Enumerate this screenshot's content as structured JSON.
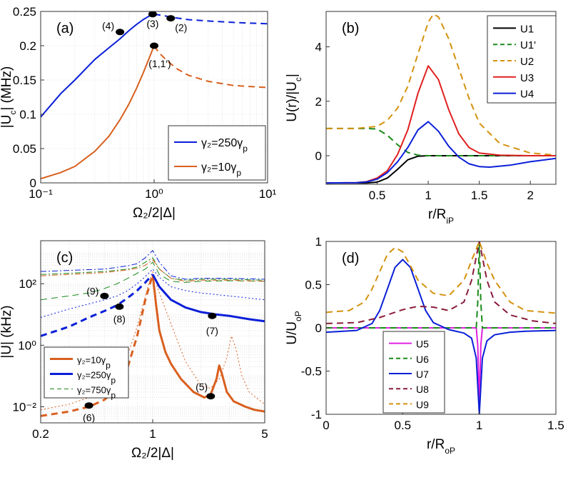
{
  "chart_data": [
    {
      "id": "a",
      "type": "line",
      "panel_label": "(a)",
      "xscale": "log",
      "xlim": [
        0.1,
        10
      ],
      "ylim": [
        0,
        0.25
      ],
      "xlabel": "Ω₂/2|Δ|",
      "ylabel": "|U_c| (MHz)",
      "xticks": [
        0.1,
        1,
        10
      ],
      "xtick_labels": [
        "10⁻¹",
        "10⁰",
        "10¹"
      ],
      "yticks": [
        0,
        0.05,
        0.1,
        0.15,
        0.2,
        0.25
      ],
      "ytick_labels": [
        "0",
        "0.05",
        "0.1",
        "0.15",
        "0.2",
        "0.25"
      ],
      "grid": true,
      "legend_position": "bottom-right",
      "series": [
        {
          "name": "γ₂=250γ_p",
          "color": "#0a1fd8",
          "style": "solid",
          "x": [
            0.1,
            0.15,
            0.2,
            0.3,
            0.4,
            0.5,
            0.6,
            0.7,
            0.8,
            0.9,
            0.95,
            1.0
          ],
          "y": [
            0.096,
            0.13,
            0.15,
            0.18,
            0.197,
            0.21,
            0.222,
            0.231,
            0.238,
            0.243,
            0.245,
            0.246
          ]
        },
        {
          "name": "γ₂=250γ_p (dashed)",
          "color": "#0a1fd8",
          "style": "dashed",
          "x": [
            1.0,
            1.2,
            1.5,
            2,
            3,
            5,
            10
          ],
          "y": [
            0.246,
            0.244,
            0.241,
            0.238,
            0.236,
            0.234,
            0.232
          ]
        },
        {
          "name": "γ₂=10γ_p",
          "color": "#d95f1e",
          "style": "solid",
          "x": [
            0.1,
            0.15,
            0.2,
            0.3,
            0.4,
            0.5,
            0.6,
            0.7,
            0.8,
            0.9,
            1.0
          ],
          "y": [
            0.006,
            0.015,
            0.024,
            0.046,
            0.068,
            0.092,
            0.115,
            0.138,
            0.16,
            0.181,
            0.2
          ]
        },
        {
          "name": "γ₂=10γ_p (dashed)",
          "color": "#d95f1e",
          "style": "dashed",
          "x": [
            1.0,
            1.1,
            1.3,
            1.6,
            2,
            3,
            5,
            10
          ],
          "y": [
            0.2,
            0.19,
            0.178,
            0.166,
            0.157,
            0.148,
            0.142,
            0.139
          ]
        }
      ],
      "markers": [
        {
          "label": "(4)",
          "x": 0.5,
          "y": 0.22
        },
        {
          "label": "(3)",
          "x": 0.97,
          "y": 0.246
        },
        {
          "label": "(2)",
          "x": 1.4,
          "y": 0.24
        },
        {
          "label": "(1,1′)",
          "x": 1.0,
          "y": 0.2
        }
      ]
    },
    {
      "id": "b",
      "type": "line",
      "panel_label": "(b)",
      "xlim": [
        0,
        2.25
      ],
      "ylim": [
        -1.05,
        5.3
      ],
      "xlabel": "r/R_iP",
      "ylabel": "U(r)/|U_c|",
      "xticks": [
        0.5,
        1,
        1.5,
        2
      ],
      "xtick_labels": [
        "0.5",
        "1",
        "1.5",
        "2"
      ],
      "yticks": [
        0,
        2,
        4
      ],
      "ytick_labels": [
        "0",
        "2",
        "4"
      ],
      "grid": false,
      "legend_position": "top-right",
      "series": [
        {
          "name": "U1",
          "color": "#000000",
          "style": "solid",
          "x": [
            0,
            0.4,
            0.5,
            0.6,
            0.7,
            0.8,
            0.9,
            1,
            1.5,
            2.25
          ],
          "y": [
            -1,
            -1,
            -0.97,
            -0.82,
            -0.5,
            -0.15,
            -0.02,
            0,
            0,
            0
          ]
        },
        {
          "name": "U1'",
          "color": "#1a8a1a",
          "style": "dashed",
          "x": [
            0,
            0.4,
            0.5,
            0.6,
            0.7,
            0.8,
            0.9,
            1,
            1.5,
            2.25
          ],
          "y": [
            1,
            1,
            0.98,
            0.75,
            0.4,
            0.12,
            0.02,
            0,
            0,
            0
          ]
        },
        {
          "name": "U2",
          "color": "#d4920f",
          "style": "dashed",
          "x": [
            0,
            0.3,
            0.5,
            0.6,
            0.7,
            0.8,
            0.9,
            1,
            1.05,
            1.1,
            1.2,
            1.3,
            1.4,
            1.5,
            1.7,
            2,
            2.25
          ],
          "y": [
            1,
            1,
            1.08,
            1.3,
            1.75,
            2.55,
            3.75,
            4.9,
            5.2,
            5.1,
            4.3,
            3.2,
            2.1,
            1.2,
            0.45,
            0.1,
            0.02
          ]
        },
        {
          "name": "U3",
          "color": "#e02020",
          "style": "solid",
          "x": [
            0,
            0.3,
            0.4,
            0.5,
            0.6,
            0.7,
            0.8,
            0.9,
            1,
            1.1,
            1.2,
            1.3,
            1.4,
            1.5,
            1.7,
            2,
            2.25
          ],
          "y": [
            -1,
            -0.99,
            -0.95,
            -0.82,
            -0.55,
            0.05,
            0.95,
            2.3,
            3.3,
            2.8,
            1.7,
            0.8,
            0.3,
            0.1,
            0.02,
            0,
            0
          ]
        },
        {
          "name": "U4",
          "color": "#0a1fd8",
          "style": "solid",
          "x": [
            0,
            0.3,
            0.4,
            0.5,
            0.6,
            0.7,
            0.8,
            0.9,
            1,
            1.1,
            1.2,
            1.3,
            1.4,
            1.5,
            1.6,
            1.8,
            2,
            2.25
          ],
          "y": [
            -1,
            -0.99,
            -0.96,
            -0.86,
            -0.62,
            -0.22,
            0.3,
            0.95,
            1.25,
            0.9,
            0.35,
            -0.05,
            -0.3,
            -0.4,
            -0.42,
            -0.35,
            -0.22,
            -0.1
          ]
        }
      ]
    },
    {
      "id": "c",
      "type": "line",
      "panel_label": "(c)",
      "xscale": "log",
      "yscale": "log",
      "xlim": [
        0.2,
        5
      ],
      "ylim": [
        0.003,
        2500
      ],
      "xlabel": "Ω₂/2|Δ|",
      "ylabel": "|U| (kHz)",
      "xticks": [
        0.2,
        1,
        5
      ],
      "xtick_labels": [
        "0.2",
        "1",
        "5"
      ],
      "yticks": [
        0.01,
        1,
        100
      ],
      "ytick_labels": [
        "10⁻²",
        "10⁰",
        "10²"
      ],
      "grid": true,
      "legend_position": "bottom-left",
      "series": [
        {
          "name": "γ₂=10γ_p",
          "color": "#d95f1e",
          "style": "dashed",
          "width": 3,
          "x": [
            0.2,
            0.3,
            0.4,
            0.5,
            0.6,
            0.7,
            0.8,
            0.9,
            1.0
          ],
          "y": [
            0.005,
            0.007,
            0.01,
            0.017,
            0.04,
            0.2,
            2,
            30,
            200
          ]
        },
        {
          "name": "γ₂=10γ_p (solid)",
          "color": "#d95f1e",
          "style": "solid",
          "width": 3,
          "x": [
            1.0,
            1.05,
            1.1,
            1.2,
            1.3,
            1.5,
            1.8,
            2.1,
            2.3,
            2.5,
            2.6,
            2.7,
            2.9,
            3.2,
            3.8,
            4.3,
            5
          ],
          "y": [
            200,
            20,
            3,
            0.6,
            0.25,
            0.08,
            0.03,
            0.02,
            0.025,
            0.08,
            0.22,
            0.12,
            0.03,
            0.015,
            0.01,
            0.008,
            0.007
          ]
        },
        {
          "name": "γ₂=10γ_p (thin)",
          "color": "#d95f1e",
          "style": "dotted",
          "width": 1,
          "x": [
            0.2,
            0.3,
            0.4,
            0.5,
            0.6,
            0.7,
            0.8,
            0.9,
            1.0,
            1.1,
            1.3,
            1.6,
            2,
            2.3,
            2.6,
            2.9,
            3.1,
            3.3,
            3.6,
            4,
            5
          ],
          "y": [
            0.008,
            0.012,
            0.02,
            0.04,
            0.1,
            0.5,
            4,
            40,
            250,
            50,
            5,
            0.3,
            0.05,
            0.04,
            0.08,
            0.4,
            2,
            0.8,
            0.1,
            0.03,
            0.012
          ]
        },
        {
          "name": "γ₂=250γ_p",
          "color": "#0a1fd8",
          "style": "dashed",
          "width": 3,
          "x": [
            0.2,
            0.3,
            0.4,
            0.5,
            0.6,
            0.7,
            0.8,
            0.9,
            1.0
          ],
          "y": [
            2,
            4,
            8,
            13,
            20,
            35,
            60,
            110,
            200
          ]
        },
        {
          "name": "γ₂=250γ_p (solid)",
          "color": "#0a1fd8",
          "style": "solid",
          "width": 3,
          "x": [
            1.0,
            1.1,
            1.3,
            1.6,
            2,
            2.5,
            3,
            4,
            5
          ],
          "y": [
            200,
            80,
            30,
            17,
            12,
            10,
            9,
            7,
            6
          ]
        },
        {
          "name": "γ₂=250γ_p (thin)",
          "color": "#0a1fd8",
          "style": "dotted",
          "width": 1,
          "x": [
            0.2,
            0.3,
            0.4,
            0.5,
            0.6,
            0.7,
            0.8,
            0.9,
            1.0,
            1.1,
            1.3,
            1.6,
            2,
            3,
            5
          ],
          "y": [
            8,
            15,
            22,
            30,
            40,
            60,
            100,
            170,
            300,
            160,
            80,
            60,
            50,
            40,
            30
          ]
        },
        {
          "name": "γ₂=750γ_p",
          "color": "#1a8a1a",
          "style": "dashed",
          "width": 1,
          "x": [
            0.2,
            0.3,
            0.4,
            0.5,
            0.6,
            0.7,
            0.8,
            0.9,
            1.0,
            1.1,
            1.3,
            1.6,
            2,
            3,
            5
          ],
          "y": [
            30,
            40,
            50,
            70,
            100,
            150,
            220,
            300,
            500,
            200,
            120,
            110,
            120,
            125,
            120
          ]
        },
        {
          "name": "γ₂=750γ_p (dash-dot)",
          "color": "#1a8a1a",
          "style": "dashdot",
          "width": 1,
          "x": [
            0.2,
            0.3,
            0.5,
            0.7,
            0.8,
            0.9,
            1.0,
            1.1,
            1.3,
            1.6,
            2,
            3,
            5
          ],
          "y": [
            200,
            220,
            250,
            300,
            350,
            500,
            700,
            300,
            150,
            130,
            140,
            140,
            130
          ]
        },
        {
          "name": "γ₂=250γ_p (dash-dot)",
          "color": "#0a1fd8",
          "style": "dashdot",
          "width": 1,
          "x": [
            0.2,
            0.3,
            0.5,
            0.7,
            0.8,
            0.9,
            1.0,
            1.1,
            1.3,
            1.6,
            2,
            3,
            5
          ],
          "y": [
            250,
            270,
            300,
            380,
            450,
            700,
            1200,
            500,
            180,
            140,
            150,
            150,
            140
          ]
        },
        {
          "name": "γ₂=10γ_p (dash-dot)",
          "color": "#d95f1e",
          "style": "dashdot",
          "width": 1,
          "x": [
            0.2,
            0.3,
            0.5,
            0.7,
            0.8,
            0.9,
            1.0,
            1.1,
            1.3,
            1.6,
            2,
            3,
            5
          ],
          "y": [
            180,
            200,
            230,
            280,
            320,
            400,
            600,
            300,
            150,
            120,
            130,
            130,
            120
          ]
        }
      ],
      "markers": [
        {
          "label": "(9)",
          "x": 0.5,
          "y": 40
        },
        {
          "label": "(8)",
          "x": 0.62,
          "y": 18
        },
        {
          "label": "(7)",
          "x": 2.35,
          "y": 9
        },
        {
          "label": "(5)",
          "x": 2.3,
          "y": 0.022
        },
        {
          "label": "(6)",
          "x": 0.4,
          "y": 0.011
        }
      ],
      "legend": [
        "γ₂=10γ_p",
        "γ₂=250γ_p",
        "γ₂=750γ_p"
      ]
    },
    {
      "id": "d",
      "type": "line",
      "panel_label": "(d)",
      "xlim": [
        0,
        1.5
      ],
      "ylim": [
        -1,
        1
      ],
      "xlabel": "r/R_oP",
      "ylabel": "U/U_oP",
      "xticks": [
        0,
        0.5,
        1,
        1.5
      ],
      "xtick_labels": [
        "0",
        "0.5",
        "1",
        "1.5"
      ],
      "yticks": [
        -1,
        -0.5,
        0,
        0.5,
        1
      ],
      "ytick_labels": [
        "-1",
        "-0.5",
        "0",
        "0.5",
        "1"
      ],
      "grid": false,
      "legend_position": "bottom-center",
      "series": [
        {
          "name": "U5",
          "color": "#e020e0",
          "style": "solid",
          "x": [
            0,
            0.98,
            0.99,
            1.0,
            1.01,
            1.02,
            1.5
          ],
          "y": [
            0,
            0,
            -0.2,
            -0.9,
            -0.2,
            0,
            0
          ]
        },
        {
          "name": "U6",
          "color": "#1a8a1a",
          "style": "dashed",
          "x": [
            0,
            0.98,
            0.99,
            1.0,
            1.01,
            1.02,
            1.5
          ],
          "y": [
            0,
            0,
            0.3,
            1,
            0.3,
            0,
            0
          ]
        },
        {
          "name": "U7",
          "color": "#0a1fd8",
          "style": "solid",
          "x": [
            0,
            0.2,
            0.3,
            0.35,
            0.4,
            0.45,
            0.5,
            0.55,
            0.6,
            0.65,
            0.7,
            0.8,
            0.9,
            0.95,
            0.98,
            1.0,
            1.02,
            1.05,
            1.1,
            1.2,
            1.3,
            1.5
          ],
          "y": [
            -0.05,
            -0.03,
            0.05,
            0.2,
            0.45,
            0.7,
            0.79,
            0.7,
            0.45,
            0.2,
            0.06,
            -0.02,
            -0.06,
            -0.12,
            -0.35,
            -1,
            -0.35,
            -0.15,
            -0.08,
            -0.05,
            -0.04,
            -0.03
          ]
        },
        {
          "name": "U8",
          "color": "#8b1c3a",
          "style": "dashed",
          "x": [
            0,
            0.2,
            0.35,
            0.5,
            0.6,
            0.7,
            0.8,
            0.9,
            0.95,
            1.0,
            1.05,
            1.1,
            1.2,
            1.35,
            1.5
          ],
          "y": [
            0.05,
            0.06,
            0.12,
            0.21,
            0.25,
            0.24,
            0.2,
            0.3,
            0.55,
            1,
            0.55,
            0.3,
            0.15,
            0.08,
            0.05
          ]
        },
        {
          "name": "U9",
          "color": "#d4920f",
          "style": "dashed",
          "x": [
            0,
            0.15,
            0.25,
            0.3,
            0.35,
            0.4,
            0.45,
            0.5,
            0.55,
            0.6,
            0.7,
            0.8,
            0.9,
            0.95,
            1.0,
            1.05,
            1.1,
            1.2,
            1.3,
            1.5
          ],
          "y": [
            0.18,
            0.2,
            0.3,
            0.45,
            0.65,
            0.85,
            0.93,
            0.88,
            0.72,
            0.55,
            0.4,
            0.37,
            0.55,
            0.78,
            1,
            0.75,
            0.55,
            0.3,
            0.2,
            0.17
          ]
        }
      ]
    }
  ]
}
